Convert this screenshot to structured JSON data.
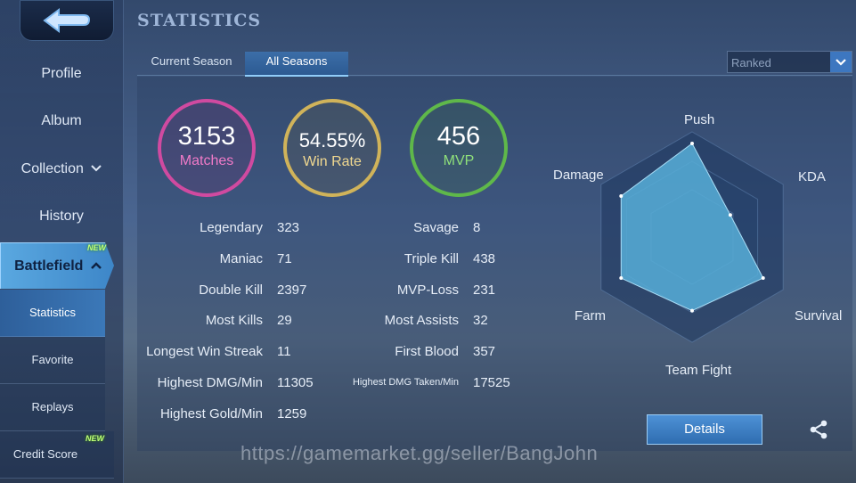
{
  "header": {
    "title": "STATISTICS"
  },
  "sidebar": {
    "items": [
      {
        "label": "Profile"
      },
      {
        "label": "Album"
      },
      {
        "label": "Collection"
      },
      {
        "label": "History"
      },
      {
        "label": "Battlefield",
        "badge": "NEW"
      }
    ],
    "subitems": [
      {
        "label": "Statistics"
      },
      {
        "label": "Favorite"
      },
      {
        "label": "Replays"
      },
      {
        "label": "Credit Score",
        "badge": "NEW"
      }
    ]
  },
  "tabs": [
    {
      "label": "Current Season"
    },
    {
      "label": "All Seasons"
    }
  ],
  "mode_select": {
    "value": "Ranked"
  },
  "summary": {
    "matches": {
      "value": "3153",
      "label": "Matches",
      "color": "#d04aa0"
    },
    "win_rate": {
      "value": "54.55%",
      "label": "Win Rate",
      "color": "#d0b35a"
    },
    "mvp": {
      "value": "456",
      "label": "MVP",
      "color": "#5fb84a"
    }
  },
  "stats_left": [
    {
      "label": "Legendary",
      "value": "323"
    },
    {
      "label": "Maniac",
      "value": "71"
    },
    {
      "label": "Double Kill",
      "value": "2397"
    },
    {
      "label": "Most Kills",
      "value": "29"
    },
    {
      "label": "Longest Win Streak",
      "value": "11"
    },
    {
      "label": "Highest DMG/Min",
      "value": "11305"
    },
    {
      "label": "Highest Gold/Min",
      "value": "1259"
    }
  ],
  "stats_right": [
    {
      "label": "Savage",
      "value": "8"
    },
    {
      "label": "Triple Kill",
      "value": "438"
    },
    {
      "label": "MVP-Loss",
      "value": "231"
    },
    {
      "label": "Most Assists",
      "value": "32"
    },
    {
      "label": "First Blood",
      "value": "357"
    },
    {
      "label": "Highest DMG Taken/Min",
      "value": "17525"
    }
  ],
  "radar": {
    "axes": [
      {
        "label": "Push",
        "level": 0.89
      },
      {
        "label": "KDA",
        "level": 0.42
      },
      {
        "label": "Survival",
        "level": 0.78
      },
      {
        "label": "Team Fight",
        "level": 0.7
      },
      {
        "label": "Farm",
        "level": 0.78
      },
      {
        "label": "Damage",
        "level": 0.78
      }
    ],
    "fill_color": "#57aed8"
  },
  "details_button": {
    "label": "Details"
  },
  "share_icon": "share-icon",
  "watermark": "https://gamemarket.gg/seller/BangJohn"
}
